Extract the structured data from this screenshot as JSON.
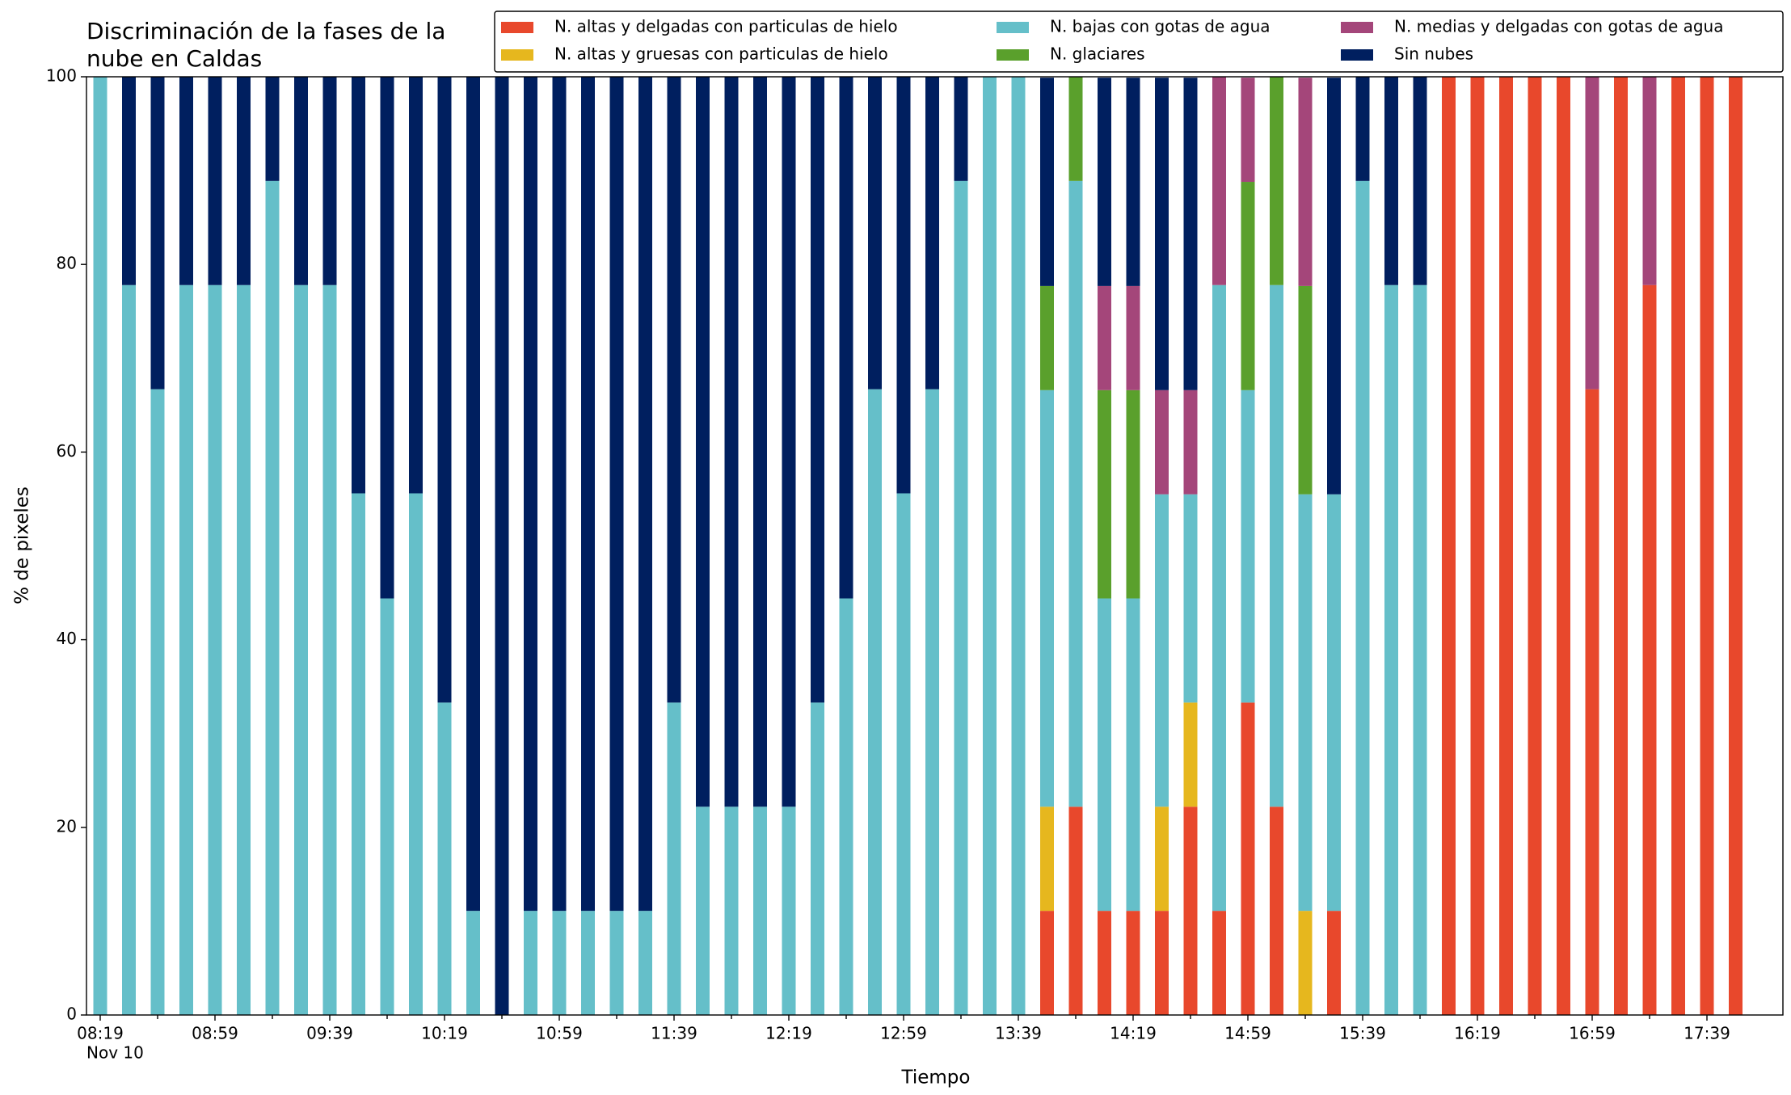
{
  "chart_data": {
    "type": "stacked_bar",
    "title": [
      "Discriminación de la fases de la",
      "nube en Caldas"
    ],
    "xlabel": "Tiempo",
    "ylabel": "% de pixeles",
    "date_label": "Nov 10",
    "categories": [
      "08:19",
      null,
      null,
      null,
      "08:59",
      null,
      null,
      null,
      "09:39",
      null,
      null,
      null,
      "10:19",
      null,
      null,
      null,
      "10:59",
      null,
      null,
      null,
      "11:39",
      null,
      null,
      null,
      "12:19",
      null,
      null,
      null,
      "12:59",
      null,
      null,
      null,
      "13:39",
      null,
      null,
      null,
      "14:19",
      null,
      null,
      null,
      "14:59",
      null,
      null,
      null,
      "15:39",
      null,
      null,
      null,
      "16:19",
      null,
      null,
      null,
      "16:59",
      null,
      null,
      null,
      "17:39",
      null
    ],
    "ylim": [
      0,
      100
    ],
    "yticks": [
      0,
      20,
      40,
      60,
      80,
      100
    ],
    "legend": "top-right",
    "series": [
      {
        "name": "N. altas y delgadas con particulas de hielo",
        "color": "#e8482c",
        "values": [
          0,
          0,
          0,
          0,
          0,
          0,
          0,
          0,
          0,
          0,
          0,
          0,
          0,
          0,
          0,
          0,
          0,
          0,
          0,
          0,
          0,
          0,
          0,
          0,
          0,
          0,
          0,
          0,
          0,
          0,
          0,
          0,
          0,
          11.1,
          22.2,
          11.1,
          11.1,
          11.1,
          22.2,
          11.1,
          33.3,
          22.2,
          0,
          11.1,
          0,
          0,
          0,
          100,
          100,
          100,
          100,
          100,
          66.7,
          100,
          77.8,
          100,
          100,
          100
        ]
      },
      {
        "name": "N. altas y gruesas con particulas de hielo",
        "color": "#e6b71e",
        "values": [
          0,
          0,
          0,
          0,
          0,
          0,
          0,
          0,
          0,
          0,
          0,
          0,
          0,
          0,
          0,
          0,
          0,
          0,
          0,
          0,
          0,
          0,
          0,
          0,
          0,
          0,
          0,
          0,
          0,
          0,
          0,
          0,
          0,
          11.1,
          0,
          0,
          0,
          11.1,
          11.1,
          0,
          0,
          0,
          11.1,
          0,
          0,
          0,
          0,
          0,
          0,
          0,
          0,
          0,
          0,
          0,
          0,
          0,
          0,
          0
        ]
      },
      {
        "name": "N. bajas con gotas de agua",
        "color": "#65bfc9",
        "values": [
          100,
          77.8,
          66.7,
          77.8,
          77.8,
          77.8,
          88.9,
          77.8,
          77.8,
          55.6,
          44.4,
          55.6,
          33.3,
          11.1,
          0,
          11.1,
          11.1,
          11.1,
          11.1,
          11.1,
          33.3,
          22.2,
          22.2,
          22.2,
          22.2,
          33.3,
          44.4,
          66.7,
          55.6,
          66.7,
          88.9,
          100,
          100,
          44.4,
          66.7,
          33.3,
          33.3,
          33.3,
          22.2,
          66.7,
          33.3,
          55.6,
          44.4,
          44.4,
          88.9,
          77.8,
          77.8,
          0,
          0,
          0,
          0,
          0,
          0,
          0,
          0,
          0,
          0,
          0
        ]
      },
      {
        "name": "N. glaciares",
        "color": "#5aa02c",
        "values": [
          0,
          0,
          0,
          0,
          0,
          0,
          0,
          0,
          0,
          0,
          0,
          0,
          0,
          0,
          0,
          0,
          0,
          0,
          0,
          0,
          0,
          0,
          0,
          0,
          0,
          0,
          0,
          0,
          0,
          0,
          0,
          0,
          0,
          11.1,
          11.1,
          22.2,
          22.2,
          0,
          0,
          0,
          22.2,
          22.2,
          22.2,
          0,
          0,
          0,
          0,
          0,
          0,
          0,
          0,
          0,
          0,
          0,
          0,
          0,
          0,
          0
        ]
      },
      {
        "name": "N. medias y delgadas con gotas de agua",
        "color": "#a4467a",
        "values": [
          0,
          0,
          0,
          0,
          0,
          0,
          0,
          0,
          0,
          0,
          0,
          0,
          0,
          0,
          0,
          0,
          0,
          0,
          0,
          0,
          0,
          0,
          0,
          0,
          0,
          0,
          0,
          0,
          0,
          0,
          0,
          0,
          0,
          0,
          0,
          11.1,
          11.1,
          11.1,
          11.1,
          22.2,
          11.1,
          0,
          22.2,
          0,
          0,
          0,
          0,
          0,
          0,
          0,
          0,
          0,
          33.3,
          0,
          22.2,
          0,
          0,
          0
        ]
      },
      {
        "name": "Sin nubes",
        "color": "#001f5f",
        "values": [
          0,
          22.2,
          33.3,
          22.2,
          22.2,
          22.2,
          11.1,
          22.2,
          22.2,
          44.4,
          55.6,
          44.4,
          66.7,
          88.9,
          100,
          88.9,
          88.9,
          88.9,
          88.9,
          88.9,
          66.7,
          77.8,
          77.8,
          77.8,
          77.8,
          66.7,
          55.6,
          33.3,
          44.4,
          33.3,
          11.1,
          0,
          0,
          22.2,
          0,
          22.2,
          22.2,
          33.3,
          33.3,
          0,
          0,
          0,
          0,
          44.4,
          11.1,
          22.2,
          22.2,
          0,
          0,
          0,
          0,
          0,
          0,
          0,
          0,
          0,
          0,
          0
        ]
      }
    ]
  }
}
